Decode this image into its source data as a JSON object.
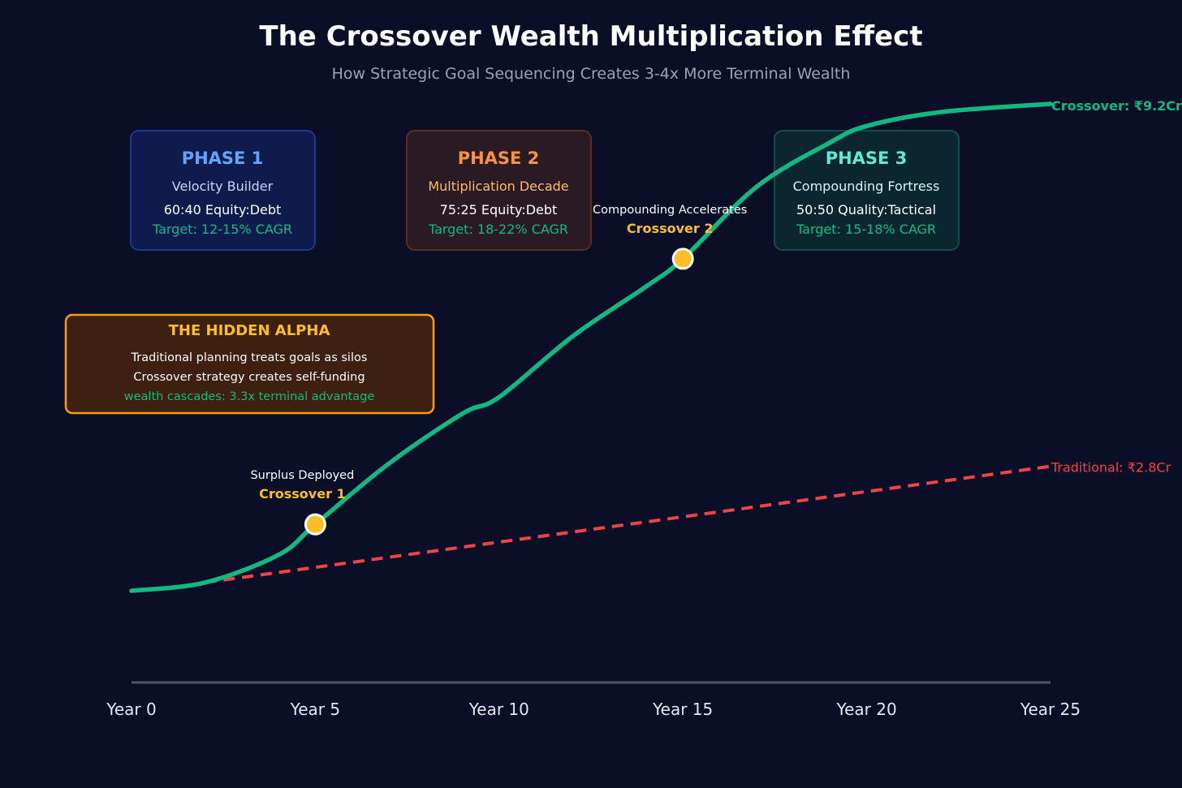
{
  "chart_data": {
    "type": "line",
    "title": "The Crossover Wealth Multiplication Effect",
    "subtitle": "How Strategic Goal Sequencing Creates 3-4x More Terminal Wealth",
    "x_ticks": [
      "Year 0",
      "Year 5",
      "Year 10",
      "Year 15",
      "Year 20",
      "Year 25"
    ],
    "xlim": [
      0,
      25
    ],
    "grid": false,
    "series": [
      {
        "name": "Crossover",
        "color": "#10b981",
        "style": "solid",
        "x": [
          0,
          2,
          4,
          5,
          7,
          9,
          10,
          12,
          14,
          15,
          17,
          19,
          20,
          22,
          25
        ],
        "y": [
          0,
          0.3,
          1.3,
          2.4,
          4.6,
          6.4,
          7.0,
          9.2,
          11.0,
          12.0,
          14.6,
          16.2,
          16.8,
          17.3,
          17.6
        ],
        "end_label": "Crossover: ₹9.2Cr"
      },
      {
        "name": "Traditional",
        "color": "#ef4444",
        "style": "dashed",
        "x": [
          2,
          25
        ],
        "y": [
          0.3,
          4.5
        ],
        "end_label": "Traditional: ₹2.8Cr"
      }
    ],
    "markers": [
      {
        "x": 5,
        "y": 2.4,
        "note": "Surplus Deployed",
        "label": "Crossover 1"
      },
      {
        "x": 15,
        "y": 12.0,
        "note": "Compounding Accelerates",
        "label": "Crossover 2"
      }
    ],
    "phases": [
      {
        "title": "PHASE 1",
        "name": "Velocity Builder",
        "allocation": "60:40 Equity:Debt",
        "target": "Target: 12-15% CAGR",
        "title_color": "#60a5fa",
        "name_color": "#bfdbfe",
        "bg": "#0f1b4d",
        "border": "#1e3a8a"
      },
      {
        "title": "PHASE 2",
        "name": "Multiplication Decade",
        "allocation": "75:25 Equity:Debt",
        "target": "Target: 18-22% CAGR",
        "title_color": "#fb923c",
        "name_color": "#fdba74",
        "bg": "#2a1a24",
        "border": "#5b2e1e"
      },
      {
        "title": "PHASE 3",
        "name": "Compounding Fortress",
        "allocation": "50:50 Quality:Tactical",
        "target": "Target: 15-18% CAGR",
        "title_color": "#5eead4",
        "name_color": "#ccfbf1",
        "bg": "#0c2630",
        "border": "#134e4a"
      }
    ],
    "hidden_alpha": {
      "title": "THE HIDDEN ALPHA",
      "lines": [
        "Traditional planning treats goals as silos",
        "Crossover strategy creates self-funding",
        "wealth cascades: 3.3x terminal advantage"
      ]
    }
  }
}
